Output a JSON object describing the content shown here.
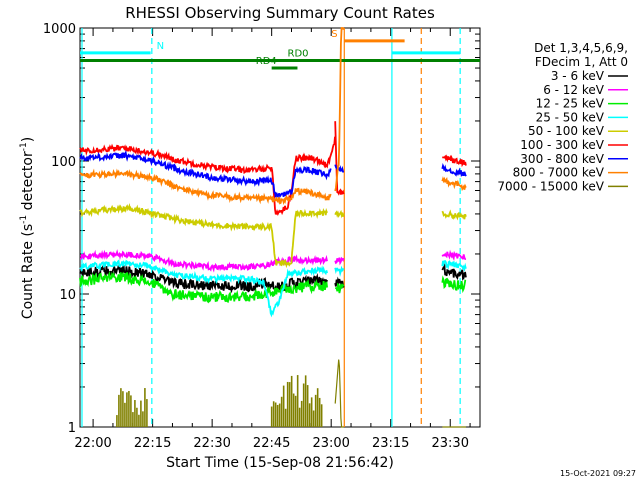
{
  "chart_data": {
    "type": "line",
    "title": "RHESSI Observing Summary Count Rates",
    "xlabel": "Start Time (15-Sep-08 21:56:42)",
    "ylabel": "Count Rate (s",
    "ylabel_sup": "-1",
    "ylabel_tail": " detector",
    "ylabel_tail_sup": "-1",
    "ylabel_close": ")",
    "yscale": "log",
    "ylim": [
      1,
      1000
    ],
    "y_ticks": [
      {
        "value": 1,
        "label": "1"
      },
      {
        "value": 10,
        "label": "10"
      },
      {
        "value": 100,
        "label": "100"
      },
      {
        "value": 1000,
        "label": "1000"
      }
    ],
    "xlim": [
      -3.3,
      97.5
    ],
    "x_tick_unit": "minutes since 22:00",
    "x_ticks": [
      {
        "value": 0,
        "label": "22:00"
      },
      {
        "value": 15,
        "label": "22:15"
      },
      {
        "value": 30,
        "label": "22:30"
      },
      {
        "value": 45,
        "label": "22:45"
      },
      {
        "value": 60,
        "label": "23:00"
      },
      {
        "value": 75,
        "label": "23:15"
      },
      {
        "value": 90,
        "label": "23:30"
      }
    ],
    "legend": {
      "position": "right",
      "header": [
        "Det 1,3,4,5,6,9,",
        "FDecim 1, Att 0"
      ],
      "entries": [
        {
          "label": "3 - 6 keV",
          "color": "#000000"
        },
        {
          "label": "6 - 12 keV",
          "color": "#ff00ff"
        },
        {
          "label": "12 - 25 keV",
          "color": "#00ee00"
        },
        {
          "label": "25 - 50 keV",
          "color": "#00ffff"
        },
        {
          "label": "50 - 100 keV",
          "color": "#cccc00"
        },
        {
          "label": "100 - 300 keV",
          "color": "#ff0000"
        },
        {
          "label": "300 - 800 keV",
          "color": "#0000ff"
        },
        {
          "label": "800 - 7000 keV",
          "color": "#ff8000"
        },
        {
          "label": "7000 - 15000 keV",
          "color": "#808000"
        }
      ]
    },
    "segments": [
      [
        -3.3,
        59.0
      ],
      [
        61.0,
        63.3
      ],
      [
        88.0,
        94.0
      ]
    ],
    "series": [
      {
        "name": "3 - 6 keV",
        "color": "#000000",
        "seg": [
          [
            [
              -3.3,
              14.5
            ],
            [
              8,
              15
            ],
            [
              15,
              14
            ],
            [
              20,
              12
            ],
            [
              30,
              11.5
            ],
            [
              40,
              11.5
            ],
            [
              44,
              12
            ],
            [
              46,
              11
            ],
            [
              50,
              12
            ],
            [
              55,
              12.5
            ],
            [
              59,
              12.5
            ]
          ],
          [
            [
              61,
              12
            ],
            [
              63.3,
              12
            ]
          ],
          [
            [
              88,
              15
            ],
            [
              94,
              14
            ]
          ]
        ]
      },
      {
        "name": "6 - 12 keV",
        "color": "#ff00ff",
        "seg": [
          [
            [
              -3.3,
              19
            ],
            [
              8,
              20
            ],
            [
              15,
              19
            ],
            [
              20,
              17
            ],
            [
              30,
              16
            ],
            [
              40,
              16
            ],
            [
              44,
              16.5
            ],
            [
              46,
              17.5
            ],
            [
              50,
              18
            ],
            [
              55,
              18
            ],
            [
              59,
              18
            ]
          ],
          [
            [
              61,
              18
            ],
            [
              63.3,
              18
            ]
          ],
          [
            [
              88,
              20
            ],
            [
              94,
              19
            ]
          ]
        ]
      },
      {
        "name": "12 - 25 keV",
        "color": "#00ee00",
        "seg": [
          [
            [
              -3.3,
              12.5
            ],
            [
              8,
              13.5
            ],
            [
              15,
              12
            ],
            [
              20,
              10
            ],
            [
              30,
              9.5
            ],
            [
              40,
              9.5
            ],
            [
              44,
              10
            ],
            [
              46,
              10.5
            ],
            [
              50,
              11
            ],
            [
              55,
              11.5
            ],
            [
              59,
              11.5
            ]
          ],
          [
            [
              61,
              11
            ],
            [
              63.3,
              11
            ]
          ],
          [
            [
              88,
              12
            ],
            [
              94,
              11.5
            ]
          ]
        ]
      },
      {
        "name": "25 - 50 keV",
        "color": "#00ffff",
        "seg": [
          [
            [
              -3.3,
              16
            ],
            [
              8,
              17
            ],
            [
              15,
              16
            ],
            [
              20,
              14
            ],
            [
              30,
              13
            ],
            [
              40,
              13
            ],
            [
              43,
              12
            ],
            [
              45,
              7
            ],
            [
              47,
              9
            ],
            [
              49,
              14
            ],
            [
              55,
              15
            ],
            [
              59,
              15
            ]
          ],
          [
            [
              61,
              15
            ],
            [
              63.3,
              15
            ]
          ],
          [
            [
              88,
              17
            ],
            [
              94,
              16
            ]
          ]
        ]
      },
      {
        "name": "50 - 100 keV",
        "color": "#cccc00",
        "seg": [
          [
            [
              -3.3,
              41
            ],
            [
              5,
              43
            ],
            [
              10,
              44
            ],
            [
              15,
              40
            ],
            [
              22,
              36
            ],
            [
              30,
              33
            ],
            [
              40,
              32
            ],
            [
              45,
              32
            ],
            [
              46,
              17
            ],
            [
              50,
              17
            ],
            [
              51,
              40
            ],
            [
              55,
              41
            ],
            [
              59,
              40
            ]
          ],
          [
            [
              61,
              40
            ],
            [
              63.3,
              40
            ]
          ],
          [
            [
              88,
              40
            ],
            [
              94,
              38
            ]
          ]
        ]
      },
      {
        "name": "100 - 300 keV",
        "color": "#ff0000",
        "seg": [
          [
            [
              -3.3,
              120
            ],
            [
              8,
              125
            ],
            [
              15,
              115
            ],
            [
              22,
              100
            ],
            [
              30,
              90
            ],
            [
              40,
              85
            ],
            [
              45,
              90
            ],
            [
              46,
              40
            ],
            [
              49,
              45
            ],
            [
              50,
              60
            ],
            [
              51,
              105
            ],
            [
              55,
              105
            ],
            [
              59,
              95
            ],
            [
              60,
              110
            ],
            [
              61,
              150
            ]
          ],
          [
            [
              61,
              200
            ],
            [
              61.5,
              60
            ],
            [
              63.3,
              55
            ]
          ],
          [
            [
              88,
              110
            ],
            [
              91,
              100
            ],
            [
              94,
              97
            ]
          ]
        ]
      },
      {
        "name": "300 - 800 keV",
        "color": "#0000ff",
        "seg": [
          [
            [
              -3.3,
              105
            ],
            [
              8,
              110
            ],
            [
              15,
              100
            ],
            [
              22,
              85
            ],
            [
              30,
              75
            ],
            [
              40,
              70
            ],
            [
              45,
              72
            ],
            [
              46,
              55
            ],
            [
              50,
              58
            ],
            [
              51,
              85
            ],
            [
              55,
              85
            ],
            [
              59,
              78
            ],
            [
              60,
              85
            ]
          ],
          [
            [
              61,
              90
            ],
            [
              63.3,
              85
            ]
          ],
          [
            [
              88,
              90
            ],
            [
              91,
              83
            ],
            [
              94,
              80
            ]
          ]
        ]
      },
      {
        "name": "800 - 7000 keV",
        "color": "#ff8000",
        "seg": [
          [
            [
              -3.3,
              78
            ],
            [
              8,
              80
            ],
            [
              15,
              75
            ],
            [
              22,
              62
            ],
            [
              30,
              55
            ],
            [
              40,
              52
            ],
            [
              45,
              52
            ],
            [
              46,
              50
            ],
            [
              50,
              52
            ],
            [
              51,
              60
            ],
            [
              55,
              58
            ],
            [
              59,
              52
            ],
            [
              60,
              55
            ]
          ],
          [
            [
              61,
              60
            ],
            [
              62,
              100
            ],
            [
              62.5,
              1000
            ],
            [
              63.3,
              1000
            ]
          ],
          [
            [
              88,
              72
            ],
            [
              91,
              68
            ],
            [
              94,
              62
            ]
          ]
        ]
      },
      {
        "name": "7000 - 15000 keV",
        "color": "#808000",
        "seg": [
          [
            [
              -3.3,
              1
            ]
          ],
          [
            [
              61,
              1.5
            ],
            [
              62,
              3.5
            ],
            [
              62.5,
              1
            ],
            [
              63.3,
              1
            ]
          ],
          [
            [
              88,
              1
            ],
            [
              94,
              1
            ]
          ]
        ]
      }
    ],
    "olive_bursts": [
      {
        "from": 6,
        "to": 14,
        "peak": 2.0
      },
      {
        "from": 45,
        "to": 58,
        "peak": 2.5
      }
    ],
    "bars": [
      {
        "label": "N",
        "from": -3.3,
        "to": 14.5,
        "y": 650,
        "color": "#00ffff",
        "label_at": 16.0
      },
      {
        "label": "",
        "from": 75.3,
        "to": 92.5,
        "y": 650,
        "color": "#00ffff",
        "label_at": null
      },
      {
        "label": "RD0",
        "from": -3.3,
        "to": 97.5,
        "y": 570,
        "color": "#008000",
        "label_at": 49.0
      },
      {
        "label": "RD4",
        "from": 45.0,
        "to": 51.5,
        "y": 500,
        "color": "#008000",
        "label_at": 41.0
      },
      {
        "label": "S",
        "from": 63.3,
        "to": 78.5,
        "y": 800,
        "color": "#ff8000",
        "label_at": 60.0
      }
    ],
    "vlines": [
      {
        "x": 14.8,
        "color": "#00ffff",
        "dashed": true
      },
      {
        "x": -2.8,
        "color": "#00ffff",
        "dashed": false
      },
      {
        "x": 75.3,
        "color": "#00ffff",
        "dashed": false
      },
      {
        "x": 92.5,
        "color": "#00ffff",
        "dashed": true
      },
      {
        "x": 63.3,
        "color": "#ff8000",
        "dashed": false
      },
      {
        "x": 82.7,
        "color": "#ff8000",
        "dashed": true
      }
    ]
  },
  "footer": {
    "date": "15-Oct-2021 09:27"
  }
}
